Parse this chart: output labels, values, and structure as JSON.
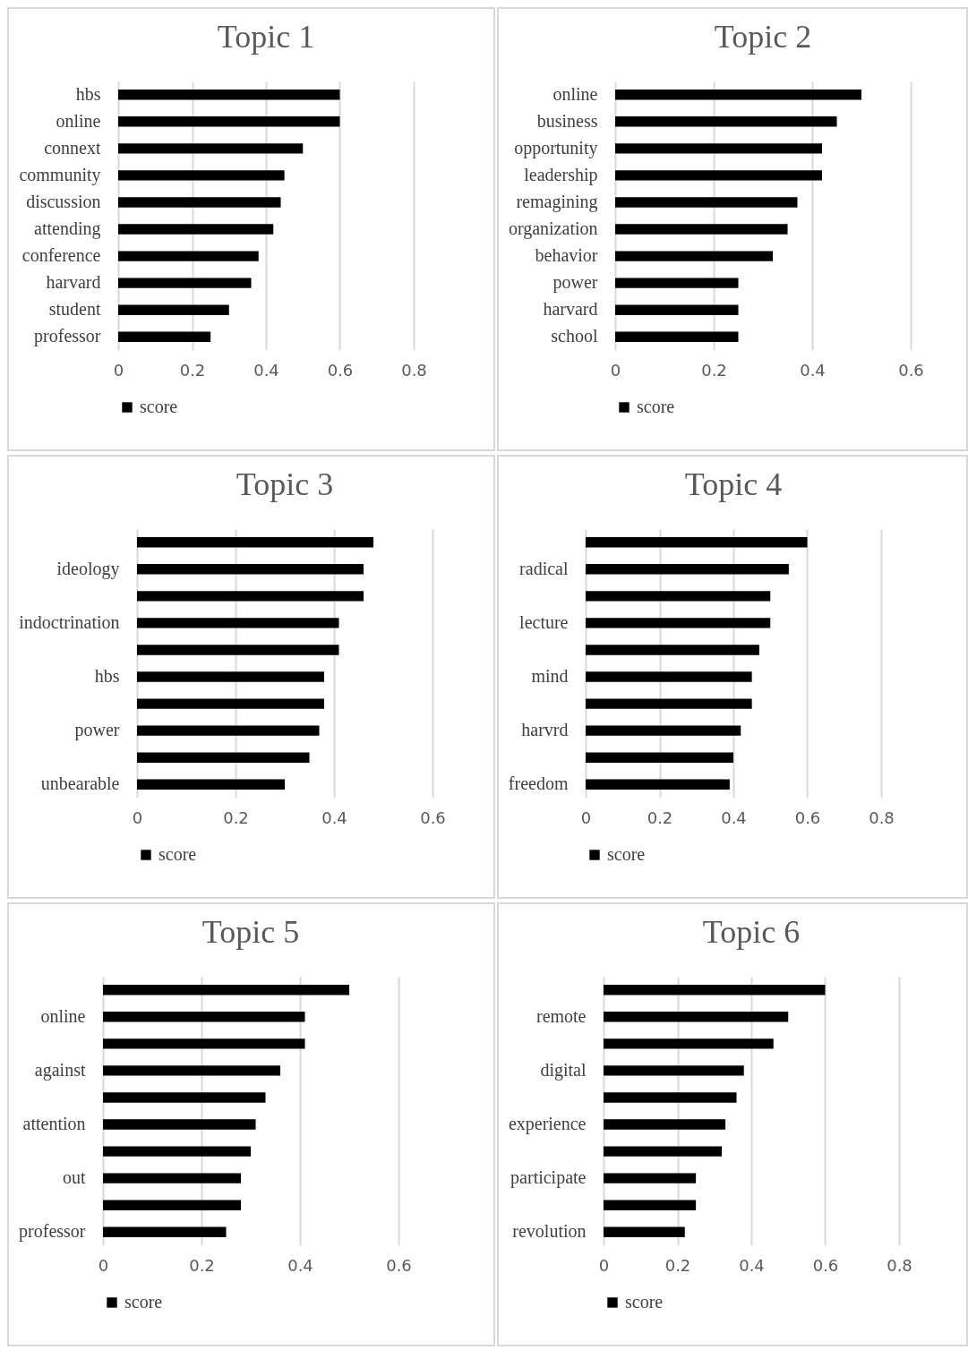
{
  "chart_data": [
    {
      "type": "bar",
      "orientation": "horizontal",
      "title": "Topic 1",
      "categories": [
        "hbs",
        "online",
        "connext",
        "community",
        "discussion",
        "attending",
        "conference",
        "harvard",
        "student",
        "professor"
      ],
      "series": [
        {
          "name": "score",
          "color": "#000000",
          "values": [
            0.6,
            0.6,
            0.5,
            0.45,
            0.44,
            0.42,
            0.38,
            0.36,
            0.3,
            0.25
          ]
        }
      ],
      "xlim": [
        0,
        0.8
      ],
      "xticks": [
        0,
        0.2,
        0.4,
        0.6,
        0.8
      ],
      "grid": "x",
      "legend": "bottom"
    },
    {
      "type": "bar",
      "orientation": "horizontal",
      "title": "Topic 2",
      "categories": [
        "online",
        "business",
        "opportunity",
        "leadership",
        "remagining",
        "organization",
        "behavior",
        "power",
        "harvard",
        "school"
      ],
      "series": [
        {
          "name": "score",
          "color": "#000000",
          "values": [
            0.5,
            0.45,
            0.42,
            0.42,
            0.37,
            0.35,
            0.32,
            0.25,
            0.25,
            0.25
          ]
        }
      ],
      "xlim": [
        0,
        0.6
      ],
      "xticks": [
        0,
        0.2,
        0.4,
        0.6
      ],
      "grid": "x",
      "legend": "bottom"
    },
    {
      "type": "bar",
      "orientation": "horizontal",
      "title": "Topic 3",
      "categories": [
        null,
        "ideology",
        null,
        "indoctrination",
        null,
        "hbs",
        null,
        "power",
        null,
        "unbearable"
      ],
      "series": [
        {
          "name": "score",
          "color": "#000000",
          "values": [
            0.48,
            0.46,
            0.46,
            0.41,
            0.41,
            0.38,
            0.38,
            0.37,
            0.35,
            0.3
          ]
        }
      ],
      "xlim": [
        0,
        0.6
      ],
      "xticks": [
        0,
        0.2,
        0.4,
        0.6
      ],
      "grid": "x",
      "legend": "bottom"
    },
    {
      "type": "bar",
      "orientation": "horizontal",
      "title": "Topic 4",
      "categories": [
        null,
        "radical",
        null,
        "lecture",
        null,
        "mind",
        null,
        "harvrd",
        null,
        "freedom"
      ],
      "series": [
        {
          "name": "score",
          "color": "#000000",
          "values": [
            0.6,
            0.55,
            0.5,
            0.5,
            0.47,
            0.45,
            0.45,
            0.42,
            0.4,
            0.39
          ]
        }
      ],
      "xlim": [
        0,
        0.8
      ],
      "xticks": [
        0,
        0.2,
        0.4,
        0.6,
        0.8
      ],
      "grid": "x",
      "legend": "bottom"
    },
    {
      "type": "bar",
      "orientation": "horizontal",
      "title": "Topic 5",
      "categories": [
        null,
        "online",
        null,
        "against",
        null,
        "attention",
        null,
        "out",
        null,
        "professor"
      ],
      "series": [
        {
          "name": "score",
          "color": "#000000",
          "values": [
            0.5,
            0.41,
            0.41,
            0.36,
            0.33,
            0.31,
            0.3,
            0.28,
            0.28,
            0.25
          ]
        }
      ],
      "xlim": [
        0,
        0.6
      ],
      "xticks": [
        0,
        0.2,
        0.4,
        0.6
      ],
      "grid": "x",
      "legend": "bottom"
    },
    {
      "type": "bar",
      "orientation": "horizontal",
      "title": "Topic 6",
      "categories": [
        null,
        "remote",
        null,
        "digital",
        null,
        "experience",
        null,
        "participate",
        null,
        "revolution"
      ],
      "series": [
        {
          "name": "score",
          "color": "#000000",
          "values": [
            0.6,
            0.5,
            0.46,
            0.38,
            0.36,
            0.33,
            0.32,
            0.25,
            0.25,
            0.22
          ]
        }
      ],
      "xlim": [
        0,
        0.8
      ],
      "xticks": [
        0,
        0.2,
        0.4,
        0.6,
        0.8
      ],
      "grid": "x",
      "legend": "bottom"
    }
  ]
}
